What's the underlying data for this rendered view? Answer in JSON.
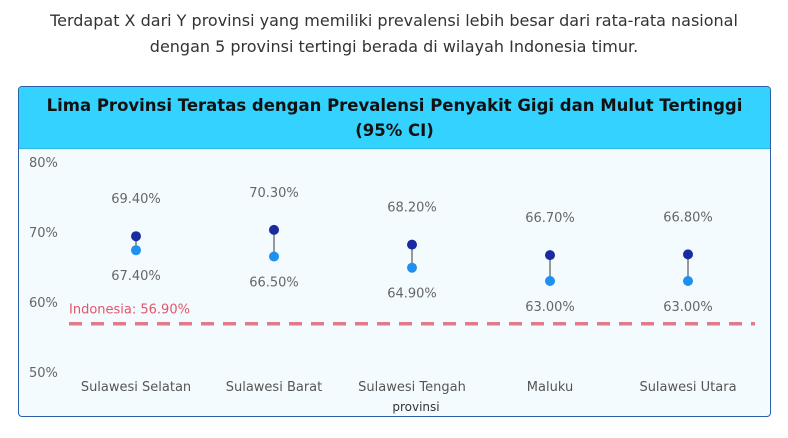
{
  "intro": {
    "line1": "Terdapat X dari Y provinsi yang memiliki prevalensi lebih besar dari rata-rata nasional",
    "line2": "dengan 5 provinsi tertingi berada di wilayah Indonesia timur."
  },
  "chart_data": {
    "type": "scatter",
    "title": "Lima Provinsi Teratas dengan Prevalensi Penyakit Gigi dan Mulut Tertinggi (95% CI)",
    "title_line1": "Lima Provinsi Teratas dengan Prevalensi Penyakit Gigi dan Mulut Tertinggi",
    "title_line2": "(95% CI)",
    "xlabel": "provinsi",
    "ylabel": "",
    "ylim": [
      50,
      80
    ],
    "yticks": [
      50,
      60,
      70,
      80
    ],
    "ytick_labels": [
      "50%",
      "60%",
      "70%",
      "80%"
    ],
    "categories": [
      "Sulawesi Selatan",
      "Sulawesi Barat",
      "Sulawesi Tengah",
      "Maluku",
      "Sulawesi Utara"
    ],
    "upper": [
      69.4,
      70.3,
      68.2,
      66.7,
      66.8
    ],
    "lower": [
      67.4,
      66.5,
      64.9,
      63.0,
      63.0
    ],
    "upper_labels": [
      "69.40%",
      "70.30%",
      "68.20%",
      "66.70%",
      "66.80%"
    ],
    "lower_labels": [
      "67.40%",
      "66.50%",
      "64.90%",
      "63.00%",
      "63.00%"
    ],
    "reference": {
      "label": "Indonesia: 56.90%",
      "value": 56.9
    },
    "grid": false,
    "legend": "none",
    "colors": {
      "upper": "#1a2aa0",
      "lower": "#1e90f0",
      "connector": "#777777",
      "reference": "#e07b8a"
    }
  }
}
